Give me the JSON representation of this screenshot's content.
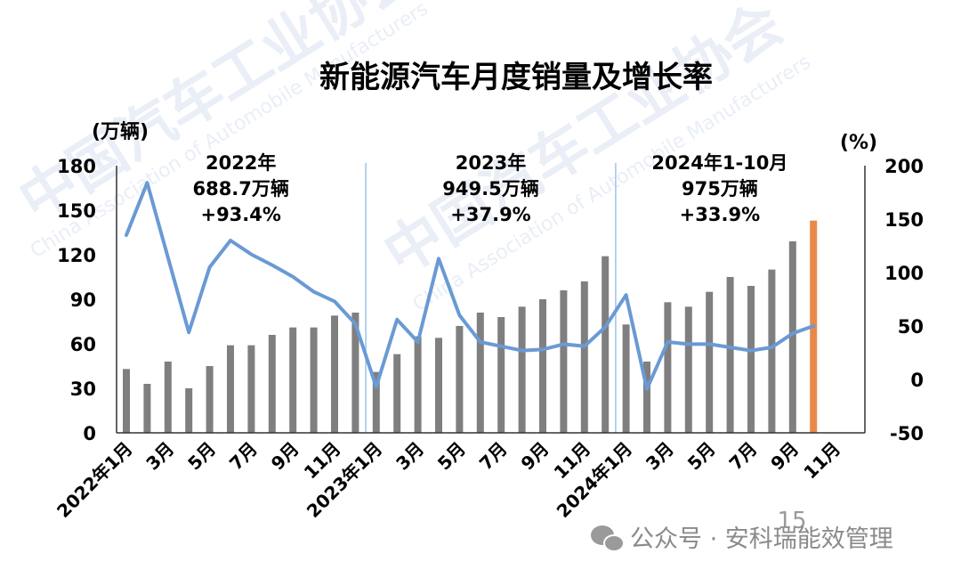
{
  "chart_data": {
    "type": "bar+line",
    "title": "新能源汽车月度销量及增长率",
    "y_left_label": "(万辆)",
    "y_right_label": "(%)",
    "y_left_ticks": [
      "0",
      "30",
      "60",
      "90",
      "120",
      "150",
      "180"
    ],
    "y_right_ticks": [
      "-50",
      "0",
      "50",
      "100",
      "150",
      "200"
    ],
    "ylim_left": [
      0,
      180
    ],
    "ylim_right": [
      -50,
      200
    ],
    "x_tick_labels": [
      "2022年1月",
      "3月",
      "5月",
      "7月",
      "9月",
      "11月",
      "2023年1月",
      "3月",
      "5月",
      "7月",
      "9月",
      "11月",
      "2024年1月",
      "3月",
      "5月",
      "7月",
      "9月",
      "11月"
    ],
    "months": [
      "2022-01",
      "2022-02",
      "2022-03",
      "2022-04",
      "2022-05",
      "2022-06",
      "2022-07",
      "2022-08",
      "2022-09",
      "2022-10",
      "2022-11",
      "2022-12",
      "2023-01",
      "2023-02",
      "2023-03",
      "2023-04",
      "2023-05",
      "2023-06",
      "2023-07",
      "2023-08",
      "2023-09",
      "2023-10",
      "2023-11",
      "2023-12",
      "2024-01",
      "2024-02",
      "2024-03",
      "2024-04",
      "2024-05",
      "2024-06",
      "2024-07",
      "2024-08",
      "2024-09",
      "2024-10"
    ],
    "series": [
      {
        "type": "bar",
        "axis": "left",
        "color": "#7f7f7f",
        "highlight_last_color": "#e8894a",
        "values": [
          43,
          33,
          48,
          30,
          45,
          59,
          59,
          66,
          71,
          71,
          79,
          81,
          41,
          53,
          65,
          64,
          72,
          81,
          78,
          85,
          90,
          96,
          102,
          119,
          73,
          48,
          88,
          85,
          95,
          105,
          99,
          110,
          129,
          143
        ]
      },
      {
        "type": "line",
        "axis": "right",
        "color": "#6a9ad4",
        "values": [
          135,
          184,
          114,
          44,
          105,
          130,
          117,
          107,
          96,
          82,
          73,
          52,
          -7,
          56,
          35,
          113,
          60,
          35,
          31,
          27,
          28,
          33,
          31,
          49,
          79,
          -9,
          35,
          33,
          33,
          30,
          27,
          30,
          43,
          50
        ]
      }
    ],
    "annotations": [
      {
        "lines": [
          "2022年",
          "688.7万辆",
          "+93.4%"
        ]
      },
      {
        "lines": [
          "2023年",
          "949.5万辆",
          "+37.9%"
        ]
      },
      {
        "lines": [
          "2024年1-10月",
          "975万辆",
          "+33.9%"
        ]
      }
    ]
  },
  "watermark": {
    "main": "中国汽车工业协会",
    "sub": "China Association of Automobile Manufacturers"
  },
  "footer": {
    "page_number": "15",
    "source": "公众号 · 安科瑞能效管理"
  }
}
